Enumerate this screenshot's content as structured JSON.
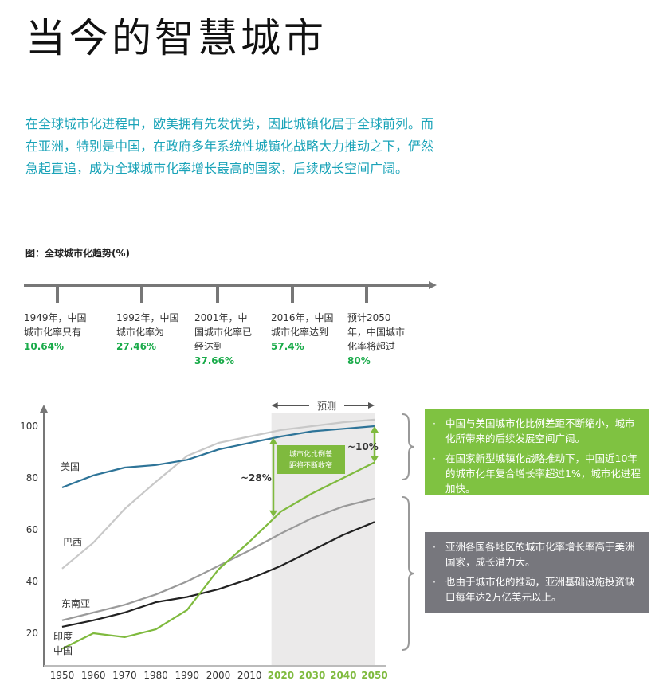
{
  "title": "当今的智慧城市",
  "intro": "在全球城市化进程中，欧美拥有先发优势，因此城镇化居于全球前列。而在亚洲，特别是中国，在政府多年系统性城镇化战略大力推动之下，俨然急起直追，成为全球城市化率增长最高的国家，后续成长空间广阔。",
  "figure_title": "图：全球城市化趋势(%)",
  "timeline": [
    {
      "text": "1949年，中国城市化率只有",
      "value": "10.64%"
    },
    {
      "text": "1992年，中国城市化率为",
      "value": "27.46%"
    },
    {
      "text": "2001年，中国城市化率已经达到",
      "value": "37.66%"
    },
    {
      "text": "2016年，中国城市化率达到",
      "value": "57.4%"
    },
    {
      "text": "预计2050年，中国城市化率将超过",
      "value": "80%"
    }
  ],
  "green_box": [
    "中国与美国城市化比例差距不断缩小，城市化所带来的后续发展空间广阔。",
    "在国家新型城镇化战略推动下，中国近10年的城市化年复合增长率超过1%，城市化进程加快。"
  ],
  "gray_box": [
    "亚洲各国各地区的城市化率增长率高于美洲国家，成长潜力大。",
    "也由于城市化的推动，亚洲基础设施投资缺口每年达2万亿美元以上。"
  ],
  "chart_data": {
    "type": "line",
    "x": [
      1950,
      1960,
      1970,
      1980,
      1990,
      2000,
      2010,
      2020,
      2030,
      2040,
      2050
    ],
    "x_ticks": [
      "1950",
      "1960",
      "1970",
      "1980",
      "1990",
      "2000",
      "2010",
      "2020",
      "2030",
      "2040",
      "2050"
    ],
    "forecast_ticks": [
      "2020",
      "2030",
      "2040",
      "2050"
    ],
    "y_ticks": [
      20,
      40,
      60,
      80,
      100
    ],
    "ylim": [
      16,
      103
    ],
    "forecast_label": "预测",
    "forecast_start": 2017,
    "gap_box": "城市化比例差距将不断收窄",
    "gap_2017": "~28%",
    "gap_2050": "~10%",
    "colors": {
      "美国": "#2e7498",
      "巴西": "#c8c8c8",
      "东南亚": "#9a9a9a",
      "印度": "#222222",
      "中国": "#7fba3e"
    },
    "series": [
      {
        "name": "美国",
        "values": [
          76.3,
          81,
          84,
          85,
          87,
          91,
          93.5,
          96,
          98,
          99,
          100
        ]
      },
      {
        "name": "巴西",
        "values": [
          45,
          55,
          68,
          78.5,
          88.5,
          93.5,
          96,
          98.5,
          100,
          101.5,
          102.5
        ]
      },
      {
        "name": "东南亚",
        "values": [
          25,
          28,
          31,
          35,
          40,
          46,
          52,
          58.5,
          64.5,
          69,
          72
        ]
      },
      {
        "name": "印度",
        "values": [
          22.5,
          25,
          28,
          32,
          34,
          37,
          41,
          46,
          52,
          58,
          63
        ]
      },
      {
        "name": "中国",
        "values": [
          14,
          20,
          18.5,
          21.5,
          29,
          44.6,
          55.4,
          67,
          74,
          80,
          86
        ]
      }
    ]
  }
}
